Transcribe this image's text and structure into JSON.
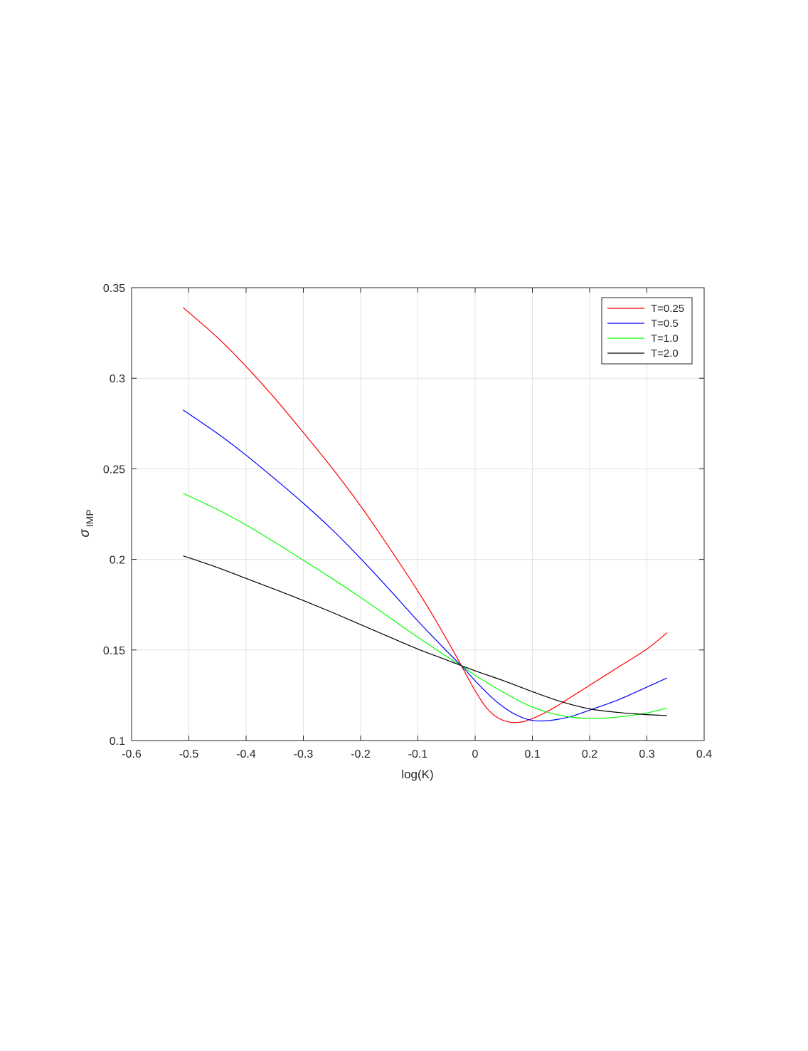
{
  "chart_data": {
    "type": "line",
    "xlabel": "log(K)",
    "ylabel": {
      "symbol": "σ",
      "subscript": "IMP"
    },
    "xlim": [
      -0.6,
      0.4
    ],
    "ylim": [
      0.1,
      0.35
    ],
    "xticks": [
      -0.6,
      -0.5,
      -0.4,
      -0.3,
      -0.2,
      -0.1,
      0,
      0.1,
      0.2,
      0.3,
      0.4
    ],
    "yticks": [
      0.1,
      0.15,
      0.2,
      0.25,
      0.3,
      0.35
    ],
    "xtick_labels": [
      "-0.6",
      "-0.5",
      "-0.4",
      "-0.3",
      "-0.2",
      "-0.1",
      "0",
      "0.1",
      "0.2",
      "0.3",
      "0.4"
    ],
    "ytick_labels": [
      "0.1",
      "0.15",
      "0.2",
      "0.25",
      "0.3",
      "0.35"
    ],
    "grid": true,
    "legend_position": "top-right",
    "series": [
      {
        "name": "T=0.25",
        "color": "#ff0000",
        "points": [
          [
            -0.51,
            0.339
          ],
          [
            -0.45,
            0.3225
          ],
          [
            -0.4,
            0.3065
          ],
          [
            -0.35,
            0.289
          ],
          [
            -0.3,
            0.27
          ],
          [
            -0.25,
            0.2505
          ],
          [
            -0.2,
            0.2295
          ],
          [
            -0.15,
            0.2065
          ],
          [
            -0.1,
            0.1825
          ],
          [
            -0.07,
            0.167
          ],
          [
            -0.04,
            0.1505
          ],
          [
            -0.02,
            0.139
          ],
          [
            0.0,
            0.1275
          ],
          [
            0.02,
            0.118
          ],
          [
            0.04,
            0.1125
          ],
          [
            0.06,
            0.1102
          ],
          [
            0.075,
            0.11
          ],
          [
            0.09,
            0.111
          ],
          [
            0.11,
            0.1135
          ],
          [
            0.14,
            0.1185
          ],
          [
            0.17,
            0.1245
          ],
          [
            0.2,
            0.1305
          ],
          [
            0.25,
            0.1405
          ],
          [
            0.3,
            0.1505
          ],
          [
            0.335,
            0.1595
          ]
        ]
      },
      {
        "name": "T=0.5",
        "color": "#0000ff",
        "points": [
          [
            -0.51,
            0.2825
          ],
          [
            -0.45,
            0.2695
          ],
          [
            -0.4,
            0.2575
          ],
          [
            -0.35,
            0.2445
          ],
          [
            -0.3,
            0.231
          ],
          [
            -0.25,
            0.2165
          ],
          [
            -0.2,
            0.2005
          ],
          [
            -0.15,
            0.1835
          ],
          [
            -0.1,
            0.166
          ],
          [
            -0.05,
            0.1495
          ],
          [
            -0.02,
            0.14
          ],
          [
            0.0,
            0.133
          ],
          [
            0.03,
            0.1235
          ],
          [
            0.06,
            0.1162
          ],
          [
            0.09,
            0.1118
          ],
          [
            0.115,
            0.1108
          ],
          [
            0.14,
            0.1115
          ],
          [
            0.17,
            0.1135
          ],
          [
            0.2,
            0.1168
          ],
          [
            0.25,
            0.1225
          ],
          [
            0.3,
            0.1295
          ],
          [
            0.335,
            0.1345
          ]
        ]
      },
      {
        "name": "T=1.0",
        "color": "#00ff00",
        "points": [
          [
            -0.51,
            0.2365
          ],
          [
            -0.45,
            0.2275
          ],
          [
            -0.4,
            0.219
          ],
          [
            -0.35,
            0.2095
          ],
          [
            -0.3,
            0.1995
          ],
          [
            -0.25,
            0.1895
          ],
          [
            -0.2,
            0.179
          ],
          [
            -0.15,
            0.168
          ],
          [
            -0.1,
            0.157
          ],
          [
            -0.05,
            0.1465
          ],
          [
            -0.02,
            0.1405
          ],
          [
            0.0,
            0.136
          ],
          [
            0.05,
            0.1265
          ],
          [
            0.1,
            0.1185
          ],
          [
            0.15,
            0.1138
          ],
          [
            0.2,
            0.1122
          ],
          [
            0.25,
            0.113
          ],
          [
            0.3,
            0.1152
          ],
          [
            0.335,
            0.118
          ]
        ]
      },
      {
        "name": "T=2.0",
        "color": "#000000",
        "points": [
          [
            -0.51,
            0.202
          ],
          [
            -0.45,
            0.1955
          ],
          [
            -0.4,
            0.1895
          ],
          [
            -0.35,
            0.1835
          ],
          [
            -0.3,
            0.1773
          ],
          [
            -0.25,
            0.1708
          ],
          [
            -0.2,
            0.164
          ],
          [
            -0.15,
            0.1572
          ],
          [
            -0.1,
            0.1505
          ],
          [
            -0.05,
            0.1445
          ],
          [
            0.0,
            0.1385
          ],
          [
            0.05,
            0.133
          ],
          [
            0.1,
            0.127
          ],
          [
            0.15,
            0.1215
          ],
          [
            0.2,
            0.1175
          ],
          [
            0.25,
            0.1155
          ],
          [
            0.3,
            0.1143
          ],
          [
            0.335,
            0.1138
          ]
        ]
      }
    ]
  }
}
